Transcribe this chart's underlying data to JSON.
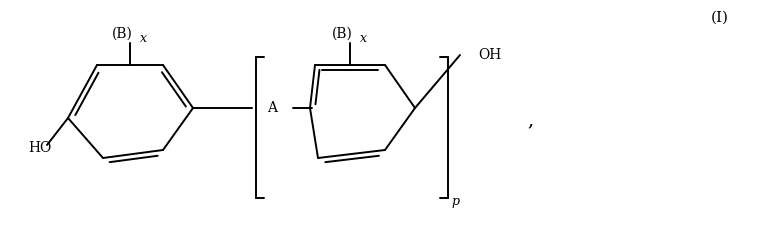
{
  "background_color": "#ffffff",
  "line_color": "#000000",
  "line_width": 1.4,
  "figsize": [
    7.58,
    2.36
  ],
  "dpi": 100,
  "label_I": "(I)",
  "label_comma": ",",
  "label_A": "A",
  "label_HO": "HO",
  "label_OH": "OH",
  "label_Bx": "(B)",
  "label_x": "x",
  "label_p": "p"
}
